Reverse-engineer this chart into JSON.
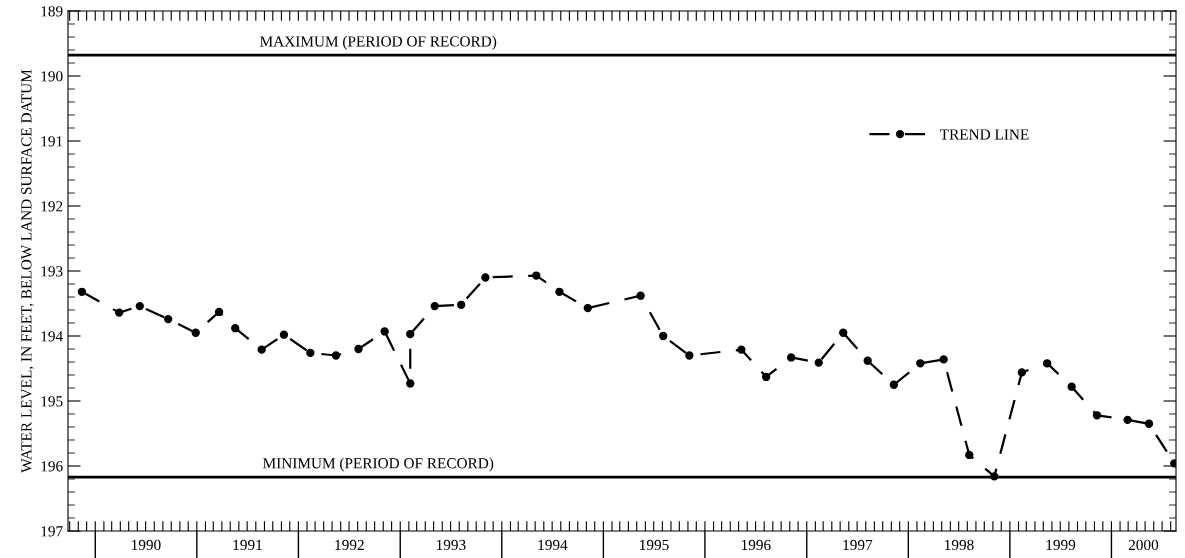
{
  "chart_data": {
    "type": "line",
    "ylabel": "WATER LEVEL, IN FEET, BELOW LAND SURFACE DATUM",
    "x": [
      "1989-11-14",
      "1990-03-28",
      "1990-06-10",
      "1990-09-20",
      "1990-12-28",
      "1991-03-22",
      "1991-05-19",
      "1991-08-22",
      "1991-11-10",
      "1992-02-13",
      "1992-05-15",
      "1992-08-04",
      "1992-11-06",
      "1993-02-06",
      "1993-02-06",
      "1993-05-05",
      "1993-08-08",
      "1993-11-03",
      "1994-05-05",
      "1994-07-27",
      "1994-11-06",
      "1995-05-15",
      "1995-08-04",
      "1995-11-06",
      "1996-05-11",
      "1996-08-08",
      "1996-11-06",
      "1997-02-13",
      "1997-05-12",
      "1997-08-08",
      "1997-11-10",
      "1998-02-13",
      "1998-05-08",
      "1998-08-08",
      "1998-11-06",
      "1999-02-13",
      "1999-05-15",
      "1999-08-11",
      "1999-11-10",
      "2000-02-28",
      "2000-05-15",
      "2000-08-14"
    ],
    "series": [
      {
        "name": "TREND LINE",
        "color": "#000000",
        "values": [
          193.32,
          193.64,
          193.54,
          193.74,
          193.95,
          193.63,
          193.88,
          194.21,
          193.98,
          194.26,
          194.3,
          194.2,
          193.93,
          194.73,
          193.97,
          193.54,
          193.52,
          193.1,
          193.07,
          193.32,
          193.57,
          193.38,
          194.0,
          194.3,
          194.21,
          194.63,
          194.33,
          194.41,
          193.95,
          194.38,
          194.75,
          194.42,
          194.36,
          195.83,
          196.16,
          194.56,
          194.42,
          194.78,
          195.22,
          195.29,
          195.35,
          195.96
        ]
      }
    ],
    "marker": "circle",
    "line_style": "dashed",
    "legend": "right",
    "grid": false,
    "xlim": [
      "1989-09-25",
      "2000-08-20"
    ],
    "xticks": [
      {
        "value": "1990-01-01",
        "label": null
      },
      {
        "value": "1990-07-02",
        "label": "1990"
      },
      {
        "value": "1991-01-01",
        "label": null
      },
      {
        "value": "1991-07-02",
        "label": "1991"
      },
      {
        "value": "1992-01-01",
        "label": null
      },
      {
        "value": "1992-07-02",
        "label": "1992"
      },
      {
        "value": "1993-01-01",
        "label": null
      },
      {
        "value": "1993-07-02",
        "label": "1993"
      },
      {
        "value": "1994-01-01",
        "label": null
      },
      {
        "value": "1994-07-02",
        "label": "1994"
      },
      {
        "value": "1995-01-01",
        "label": null
      },
      {
        "value": "1995-07-02",
        "label": "1995"
      },
      {
        "value": "1996-01-01",
        "label": null
      },
      {
        "value": "1996-07-02",
        "label": "1996"
      },
      {
        "value": "1997-01-01",
        "label": null
      },
      {
        "value": "1997-07-02",
        "label": "1997"
      },
      {
        "value": "1998-01-01",
        "label": null
      },
      {
        "value": "1998-07-02",
        "label": "1998"
      },
      {
        "value": "1999-01-01",
        "label": null
      },
      {
        "value": "1999-07-02",
        "label": "1999"
      },
      {
        "value": "2000-01-01",
        "label": null
      },
      {
        "value": "2000-04-25",
        "label": "2000"
      }
    ],
    "ylim": [
      197,
      189
    ],
    "yticks": [
      189,
      190,
      191,
      192,
      193,
      194,
      195,
      196,
      197
    ],
    "ref_lines": [
      {
        "axis": "y",
        "value": 189.68,
        "label": "MAXIMUM (PERIOD OF RECORD)",
        "color": "#000000"
      },
      {
        "axis": "y",
        "value": 196.17,
        "label": "MINIMUM (PERIOD OF RECORD)",
        "color": "#000000"
      }
    ]
  }
}
